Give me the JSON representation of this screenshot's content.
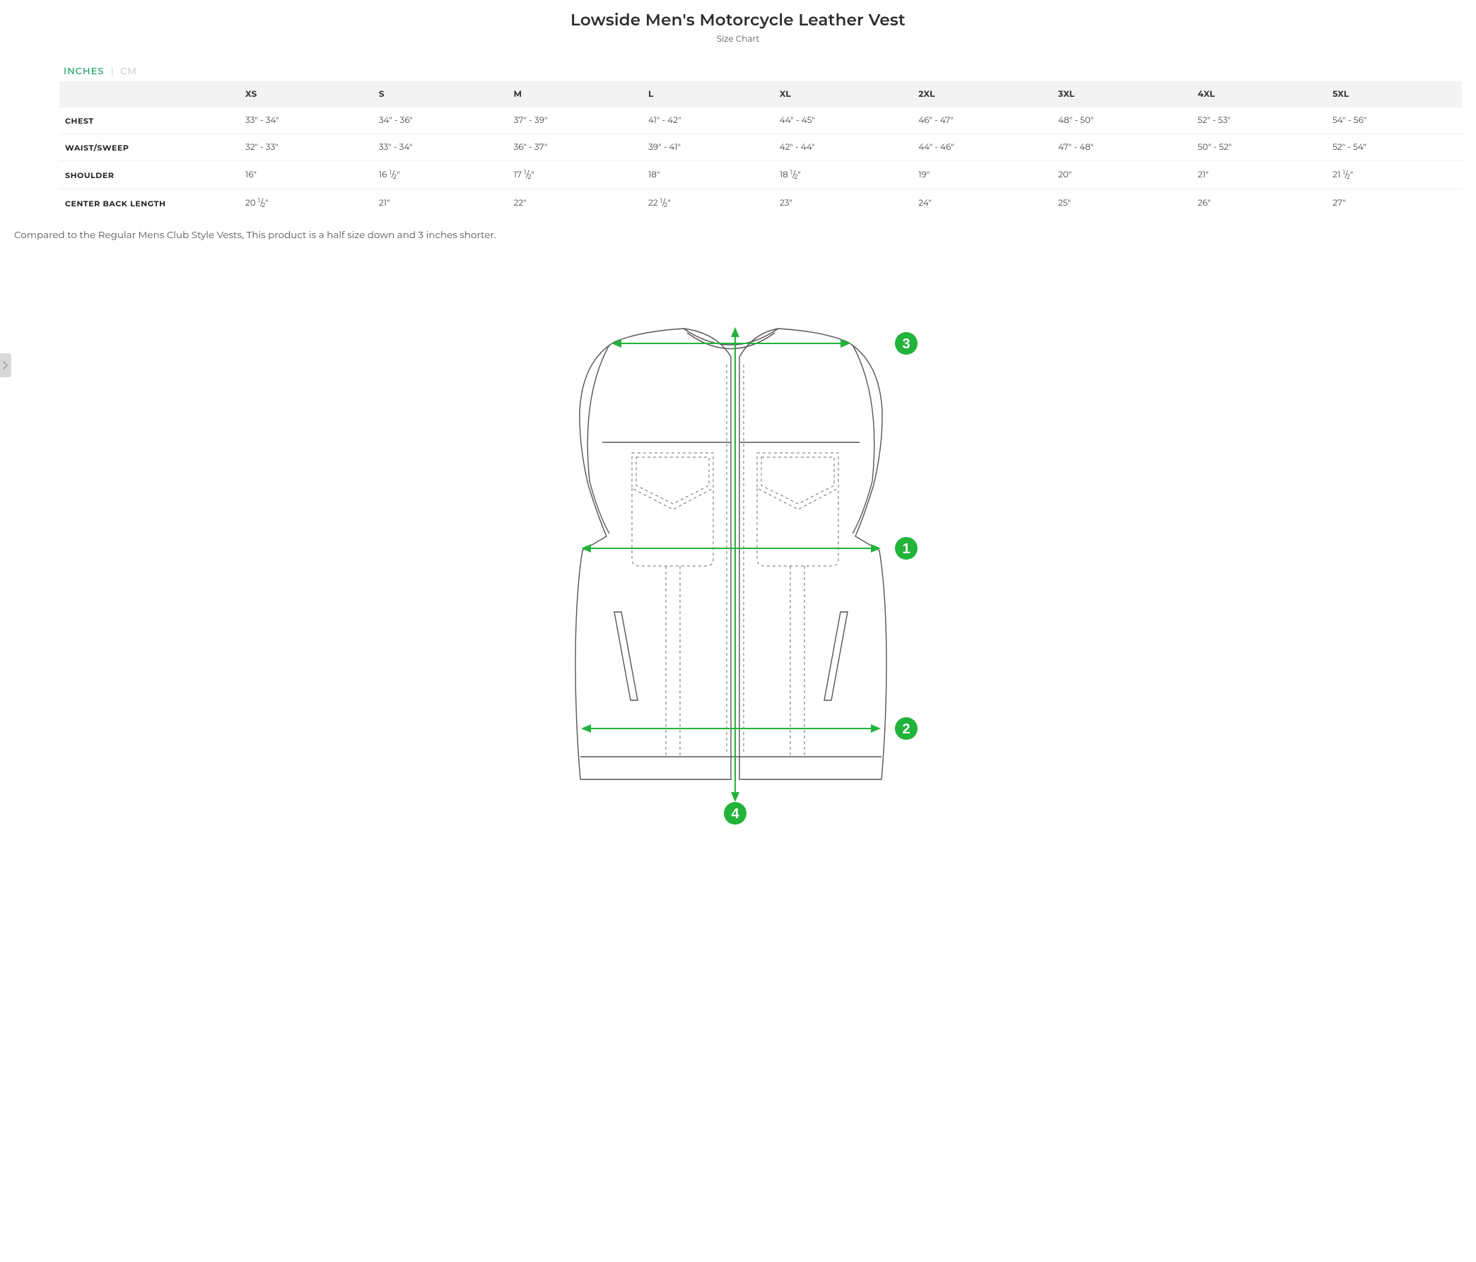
{
  "title": "Lowside Men's Motorcycle Leather Vest",
  "subtitle": "Size Chart",
  "units": {
    "active": "INCHES",
    "sep": "|",
    "inactive": "CM"
  },
  "table": {
    "columns": [
      "XS",
      "S",
      "M",
      "L",
      "XL",
      "2XL",
      "3XL",
      "4XL",
      "5XL"
    ],
    "rows": [
      {
        "label": "CHEST",
        "cells": [
          "33\" - 34\"",
          "34\" - 36\"",
          "37\" - 39\"",
          "41\" - 42\"",
          "44\" - 45\"",
          "46\" - 47\"",
          "48\" - 50\"",
          "52\" - 53\"",
          "54\" - 56\""
        ]
      },
      {
        "label": "WAIST/SWEEP",
        "cells": [
          "32\" - 33\"",
          "33\" - 34\"",
          "36\" - 37\"",
          "39\" - 41\"",
          "42\" - 44\"",
          "44\" - 46\"",
          "47\" - 48\"",
          "50\" - 52\"",
          "52\" - 54\""
        ]
      },
      {
        "label": "SHOULDER",
        "cells": [
          "16\"",
          "16 ½\"",
          "17 ½\"",
          "18\"",
          "18 ½\"",
          "19\"",
          "20\"",
          "21\"",
          "21 ½\""
        ]
      },
      {
        "label": "CENTER BACK LENGTH",
        "cells": [
          "20 ½\"",
          "21\"",
          "22\"",
          "22 ½\"",
          "23\"",
          "24\"",
          "25\"",
          "26\"",
          "27\""
        ]
      }
    ]
  },
  "note": "Compared to the Regular Mens Club Style Vests, This product is a half size down and 3 inches shorter.",
  "diagram": {
    "markers": [
      "1",
      "2",
      "3",
      "4"
    ],
    "marker_fill": "#22b33a",
    "marker_text": "#ffffff",
    "arrow_stroke": "#22b33a",
    "arrow_width": 2,
    "outline_stroke": "#555555",
    "outline_width": 1.4,
    "dashed_stroke": "#6b6b6b",
    "background": "#ffffff"
  },
  "colors": {
    "title": "#2d2d2d",
    "subtitle": "#555555",
    "unit_active": "#0a9a5c",
    "unit_inactive": "#bbbbbb",
    "thead_bg": "#f3f3f3",
    "row_border": "#f0f0f0",
    "side_tab_bg": "#d9d9d9",
    "side_tab_chevron": "#a8a8a8"
  }
}
